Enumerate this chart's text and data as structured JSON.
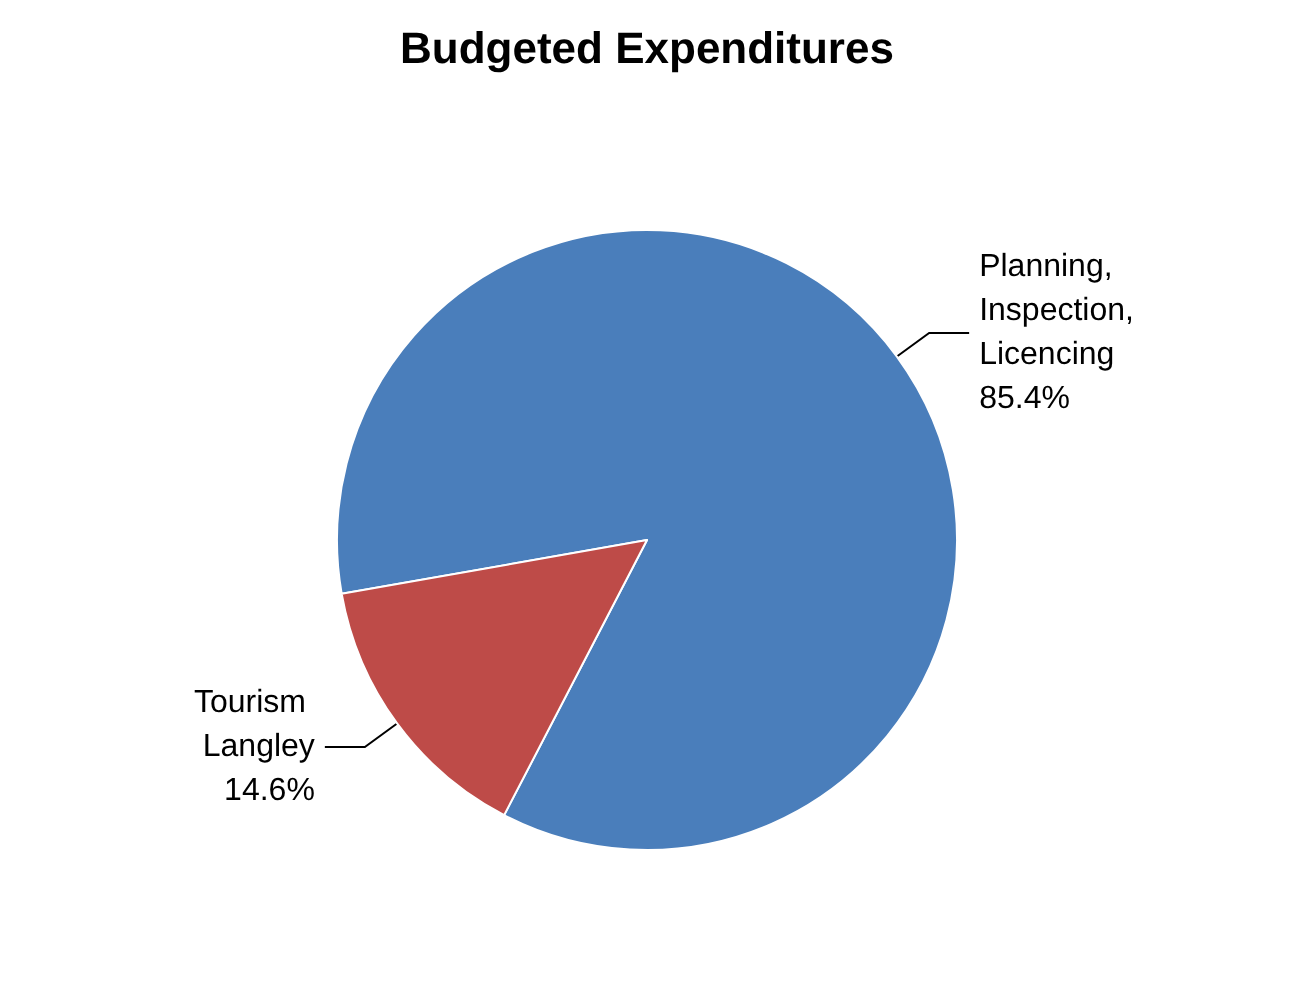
{
  "chart_data": {
    "type": "pie",
    "title": "Budgeted Expenditures",
    "categories": [
      "Planning, Inspection, Licencing",
      "Tourism Langley"
    ],
    "values": [
      85.4,
      14.6
    ],
    "value_labels": [
      "85.4%",
      "14.6%"
    ],
    "colors": [
      "#4a7ebb",
      "#be4b48"
    ],
    "legend": false
  }
}
